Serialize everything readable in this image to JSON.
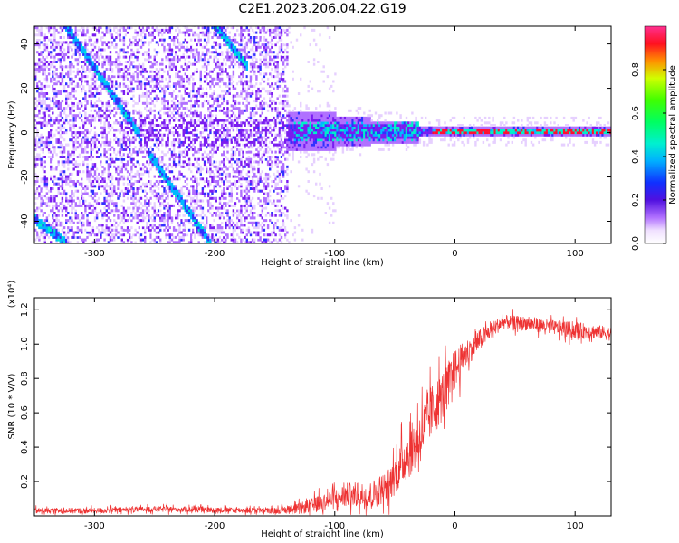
{
  "title": "C2E1.2023.206.04.22.G19",
  "chart_data": [
    {
      "type": "heatmap",
      "xlabel": "Height of straight line (km)",
      "ylabel": "Frequency (Hz)",
      "xlim": [
        -350,
        130
      ],
      "ylim": [
        -50,
        48
      ],
      "x_ticks": [
        -300,
        -200,
        -100,
        0,
        100
      ],
      "y_ticks": [
        -40,
        -20,
        0,
        20,
        40
      ],
      "colorbar": {
        "label": "Normalized spectral amplitude",
        "range": [
          0,
          1
        ],
        "ticks": [
          0.0,
          0.2,
          0.4,
          0.6,
          0.8
        ],
        "tick_labels": [
          "0.0",
          "0.2",
          "0.4",
          "0.6",
          "0.8"
        ]
      },
      "colors": [
        "#ffffff",
        "#e6cfff",
        "#b070ff",
        "#7a1cf0",
        "#3030ff",
        "#00c8ff",
        "#00ffb0",
        "#22e000",
        "#ff9000",
        "#ff0030",
        "#ff40a0"
      ],
      "features": {
        "noise_region_x": [
          -350,
          -140
        ],
        "signal_start_x": -135,
        "diagonal_lines": [
          {
            "x": [
              -325,
              -265
            ],
            "y": [
              48,
              0
            ]
          },
          {
            "x": [
              -255,
              -205
            ],
            "y": [
              -10,
              -50
            ]
          },
          {
            "x": [
              -350,
              -325
            ],
            "y": [
              -40,
              -50
            ]
          },
          {
            "x": [
              -200,
              -175
            ],
            "y": [
              48,
              30
            ]
          }
        ],
        "carrier_peak_x": [
          -20,
          130
        ]
      }
    },
    {
      "type": "line",
      "xlabel": "Height of straight line (km)",
      "ylabel": "SNR (10 * V/V)",
      "scale_label": "(x10⁴)",
      "xlim": [
        -350,
        130
      ],
      "ylim": [
        0,
        1.27
      ],
      "x_ticks": [
        -300,
        -200,
        -100,
        0,
        100
      ],
      "y_ticks": [
        0.2,
        0.4,
        0.6,
        0.8,
        1.0,
        1.2
      ],
      "y_tick_labels": [
        "0.2",
        "0.4",
        "0.6",
        "0.8",
        "1.0",
        "1.2"
      ],
      "color": "#ee3333",
      "envelope": {
        "x": [
          -350,
          -300,
          -250,
          -200,
          -150,
          -130,
          -110,
          -90,
          -70,
          -55,
          -40,
          -30,
          -20,
          -10,
          0,
          10,
          20,
          30,
          40,
          60,
          80,
          100,
          120,
          130
        ],
        "y": [
          0.03,
          0.03,
          0.04,
          0.035,
          0.03,
          0.04,
          0.08,
          0.12,
          0.12,
          0.18,
          0.35,
          0.45,
          0.6,
          0.7,
          0.85,
          0.95,
          1.02,
          1.08,
          1.13,
          1.12,
          1.1,
          1.08,
          1.07,
          1.06
        ],
        "amp": [
          0.02,
          0.02,
          0.02,
          0.02,
          0.02,
          0.04,
          0.06,
          0.09,
          0.1,
          0.12,
          0.18,
          0.2,
          0.2,
          0.18,
          0.15,
          0.1,
          0.08,
          0.06,
          0.05,
          0.05,
          0.05,
          0.06,
          0.05,
          0.05
        ]
      }
    }
  ]
}
